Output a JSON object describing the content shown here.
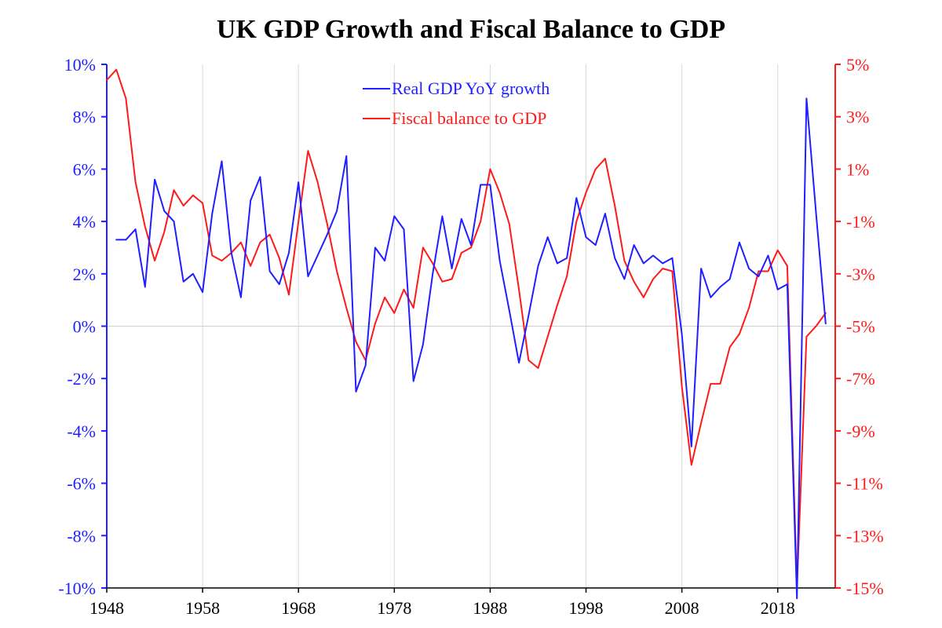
{
  "chart_data": {
    "type": "line",
    "title": "UK GDP Growth and Fiscal Balance to GDP",
    "colors": {
      "left_axis": "#1f1fff",
      "right_axis": "#ff1a1a",
      "grid": "#d9d9d9",
      "baseline": "#cfcfcf"
    },
    "x_ticks": [
      1948,
      1958,
      1968,
      1978,
      1988,
      1998,
      2008,
      2018
    ],
    "x_tick_labels": [
      "1948",
      "1958",
      "1968",
      "1978",
      "1988",
      "1998",
      "2008",
      "2018"
    ],
    "xlim": [
      1948,
      2024
    ],
    "left_axis": {
      "ylim": [
        -10,
        10
      ],
      "ticks": [
        10,
        8,
        6,
        4,
        2,
        0,
        -2,
        -4,
        -6,
        -8,
        -10
      ],
      "tick_labels": [
        "10%",
        "8%",
        "6%",
        "4%",
        "2%",
        "0%",
        "-2%",
        "-4%",
        "-6%",
        "-8%",
        "-10%"
      ]
    },
    "right_axis": {
      "ylim": [
        -15,
        5
      ],
      "ticks": [
        5,
        3,
        1,
        -1,
        -3,
        -5,
        -7,
        -9,
        -11,
        -13,
        -15
      ],
      "tick_labels": [
        "5%",
        "3%",
        "1%",
        "-1%",
        "-3%",
        "-5%",
        "-7%",
        "-9%",
        "-11%",
        "-13%",
        "-15%"
      ]
    },
    "grid": "vertical",
    "legend_position": "top-center",
    "series": [
      {
        "name": "Real GDP YoY growth",
        "axis": "left",
        "color": "#1f1fff",
        "x": [
          1949,
          1950,
          1951,
          1952,
          1953,
          1954,
          1955,
          1956,
          1957,
          1958,
          1959,
          1960,
          1961,
          1962,
          1963,
          1964,
          1965,
          1966,
          1967,
          1968,
          1969,
          1970,
          1971,
          1972,
          1973,
          1974,
          1975,
          1976,
          1977,
          1978,
          1979,
          1980,
          1981,
          1982,
          1983,
          1984,
          1985,
          1986,
          1987,
          1988,
          1989,
          1990,
          1991,
          1992,
          1993,
          1994,
          1995,
          1996,
          1997,
          1998,
          1999,
          2000,
          2001,
          2002,
          2003,
          2004,
          2005,
          2006,
          2007,
          2008,
          2009,
          2010,
          2011,
          2012,
          2013,
          2014,
          2015,
          2016,
          2017,
          2018,
          2019,
          2020,
          2021,
          2022,
          2023
        ],
        "y": [
          3.3,
          3.3,
          3.7,
          1.5,
          5.6,
          4.4,
          4.0,
          1.7,
          2.0,
          1.3,
          4.3,
          6.3,
          2.8,
          1.1,
          4.8,
          5.7,
          2.1,
          1.6,
          2.8,
          5.5,
          1.9,
          2.7,
          3.5,
          4.4,
          6.5,
          -2.5,
          -1.5,
          3.0,
          2.5,
          4.2,
          3.7,
          -2.1,
          -0.7,
          2.0,
          4.2,
          2.2,
          4.1,
          3.1,
          5.4,
          5.4,
          2.5,
          0.6,
          -1.4,
          0.4,
          2.3,
          3.4,
          2.4,
          2.6,
          4.9,
          3.4,
          3.1,
          4.3,
          2.6,
          1.8,
          3.1,
          2.4,
          2.7,
          2.4,
          2.6,
          -0.3,
          -4.6,
          2.2,
          1.1,
          1.5,
          1.8,
          3.2,
          2.2,
          1.9,
          2.7,
          1.4,
          1.6,
          -10.4,
          8.7,
          4.3,
          0.1
        ]
      },
      {
        "name": "Fiscal balance to GDP",
        "axis": "right",
        "color": "#ff1a1a",
        "x": [
          1948,
          1949,
          1950,
          1951,
          1952,
          1953,
          1954,
          1955,
          1956,
          1957,
          1958,
          1959,
          1960,
          1961,
          1962,
          1963,
          1964,
          1965,
          1966,
          1967,
          1968,
          1969,
          1970,
          1971,
          1972,
          1973,
          1974,
          1975,
          1976,
          1977,
          1978,
          1979,
          1980,
          1981,
          1982,
          1983,
          1984,
          1985,
          1986,
          1987,
          1988,
          1989,
          1990,
          1991,
          1992,
          1993,
          1994,
          1995,
          1996,
          1997,
          1998,
          1999,
          2000,
          2001,
          2002,
          2003,
          2004,
          2005,
          2006,
          2007,
          2008,
          2009,
          2010,
          2011,
          2012,
          2013,
          2014,
          2015,
          2016,
          2017,
          2018,
          2019,
          2020,
          2021,
          2022,
          2023
        ],
        "y": [
          4.4,
          4.8,
          3.7,
          0.5,
          -1.2,
          -2.5,
          -1.4,
          0.2,
          -0.4,
          0.0,
          -0.3,
          -2.3,
          -2.5,
          -2.2,
          -1.8,
          -2.7,
          -1.8,
          -1.5,
          -2.4,
          -3.8,
          -1.0,
          1.7,
          0.5,
          -1.1,
          -2.9,
          -4.3,
          -5.6,
          -6.3,
          -4.9,
          -3.9,
          -4.5,
          -3.6,
          -4.3,
          -2.0,
          -2.6,
          -3.3,
          -3.2,
          -2.2,
          -2.0,
          -1.0,
          1.0,
          0.1,
          -1.1,
          -3.6,
          -6.3,
          -6.6,
          -5.4,
          -4.2,
          -3.1,
          -1.0,
          0.1,
          1.0,
          1.4,
          -0.4,
          -2.5,
          -3.3,
          -3.9,
          -3.2,
          -2.8,
          -2.9,
          -7.3,
          -10.3,
          -8.7,
          -7.2,
          -7.2,
          -5.8,
          -5.3,
          -4.3,
          -2.9,
          -2.9,
          -2.1,
          -2.7,
          -15.0,
          -5.4,
          -5.0,
          -4.5
        ]
      }
    ]
  }
}
